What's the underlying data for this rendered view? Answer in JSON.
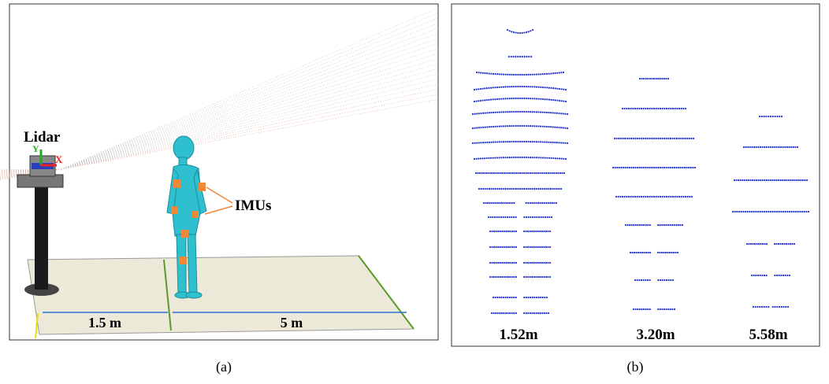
{
  "panel_a": {
    "lidar_label": "Lidar",
    "axis_y": "Y",
    "axis_x": "X",
    "imu_label": "IMUs",
    "distance_near": "1.5 m",
    "distance_far": "5 m",
    "caption": "(a)"
  },
  "panel_b": {
    "distances": [
      "1.52m",
      "3.20m",
      "5.58m"
    ],
    "caption": "(b)"
  }
}
